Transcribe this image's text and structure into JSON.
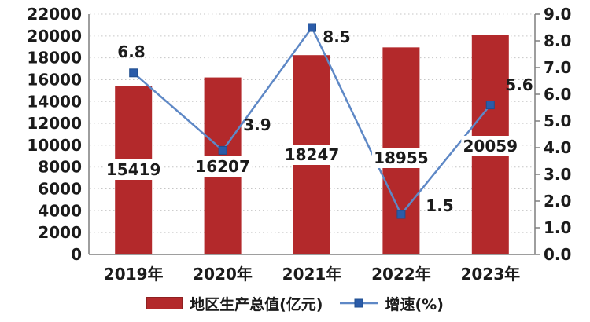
{
  "chart_data": {
    "type": "bar+line combo",
    "title": "",
    "categories": [
      "2019年",
      "2020年",
      "2021年",
      "2022年",
      "2023年"
    ],
    "series": [
      {
        "name": "地区生产总值(亿元)",
        "type": "bar",
        "axis": "left",
        "values": [
          15419,
          16207,
          18247,
          18955,
          20059
        ],
        "data_labels": [
          "15419",
          "16207",
          "18247",
          "18955",
          "20059"
        ],
        "color": "#b3292b"
      },
      {
        "name": "增速(%)",
        "type": "line",
        "axis": "right",
        "values": [
          6.8,
          3.9,
          8.5,
          1.5,
          5.6
        ],
        "data_labels": [
          "6.8",
          "3.9",
          "8.5",
          "1.5",
          "5.6"
        ],
        "line_color": "#5e88c6",
        "marker_color": "#2b5ca9",
        "marker_shape": "square"
      }
    ],
    "left_axis": {
      "min": 0,
      "max": 22000,
      "step": 2000,
      "tick_labels": [
        "0",
        "2000",
        "4000",
        "6000",
        "8000",
        "10000",
        "12000",
        "14000",
        "16000",
        "18000",
        "20000",
        "22000"
      ]
    },
    "right_axis": {
      "min": 0.0,
      "max": 9.0,
      "step": 1.0,
      "tick_labels": [
        "0.0",
        "1.0",
        "2.0",
        "3.0",
        "4.0",
        "5.0",
        "6.0",
        "7.0",
        "8.0",
        "9.0"
      ]
    },
    "grid": {
      "horizontal": true,
      "style": "dotted",
      "color": "#c6c6c6"
    },
    "legend_position": "bottom"
  },
  "colors": {
    "bar": "#b3292b",
    "line": "#5e88c6",
    "marker": "#2b5ca9",
    "axis": "#7f7f7f",
    "grid": "#c6c6c6",
    "text": "#1b1b1b",
    "background": "#ffffff"
  }
}
